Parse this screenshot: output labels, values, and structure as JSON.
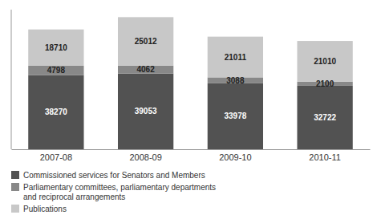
{
  "chart_data": {
    "type": "bar",
    "stacked": true,
    "categories": [
      "2007-08",
      "2008-09",
      "2009-10",
      "2010-11"
    ],
    "series": [
      {
        "name": "Commissioned services for Senators and Members",
        "color": "#525252",
        "values": [
          38270,
          39053,
          33978,
          32722
        ]
      },
      {
        "name": "Parliamentary committees, parliamentary departments\nand reciprocal arrangements",
        "color": "#888888",
        "values": [
          4798,
          4062,
          3088,
          2100
        ]
      },
      {
        "name": "Publications",
        "color": "#c8c8c8",
        "values": [
          18710,
          25012,
          21011,
          21010
        ]
      }
    ],
    "ylim": [
      0,
      72000
    ],
    "tick_labels": "x",
    "data_labels": true,
    "legend": "bottom"
  }
}
